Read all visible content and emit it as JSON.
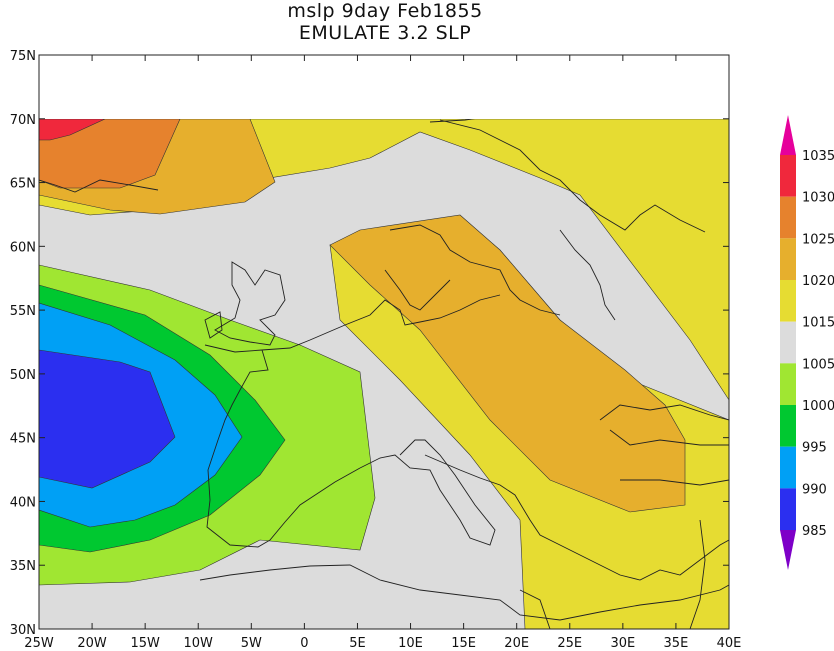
{
  "title_line1": "mslp 9day Feb1855",
  "title_line2": "EMULATE 3.2 SLP",
  "map": {
    "lon_range": [
      -25,
      40
    ],
    "lat_range": [
      30,
      75
    ],
    "data_top_lat": 70,
    "lon_ticks": [
      "25W",
      "20W",
      "15W",
      "10W",
      "5W",
      "0",
      "5E",
      "10E",
      "15E",
      "20E",
      "25E",
      "30E",
      "35E",
      "40E"
    ],
    "lat_ticks": [
      "30N",
      "35N",
      "40N",
      "45N",
      "50N",
      "55N",
      "60N",
      "65N",
      "70N",
      "75N"
    ]
  },
  "colorbar": {
    "levels": [
      "985",
      "990",
      "995",
      "1000",
      "1005",
      "1015",
      "1020",
      "1025",
      "1030",
      "1035"
    ],
    "colors": [
      "#7e00c8",
      "#2b2ff0",
      "#00a0f5",
      "#00c830",
      "#a0e632",
      "#dcdcdc",
      "#e6dc32",
      "#e6af2d",
      "#e6822d",
      "#f0283c",
      "#e6009b"
    ]
  }
}
